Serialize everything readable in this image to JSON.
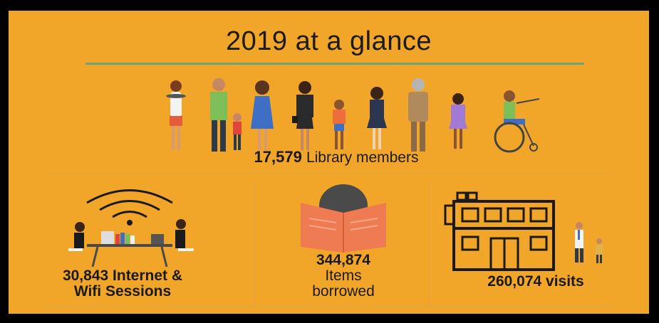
{
  "title": "2019 at a glance",
  "members": {
    "number": "17,579",
    "label": "Library members"
  },
  "internet": {
    "number": "30,843",
    "label_line1": "Internet &",
    "label_line2": "Wifi Sessions"
  },
  "borrowed": {
    "number": "344,874",
    "label_line1": "Items",
    "label_line2": "borrowed"
  },
  "visits": {
    "number": "260,074",
    "label": "visits"
  },
  "colors": {
    "background": "#f2a629",
    "frame": "#000000",
    "rule": "#6ea27a",
    "text": "#1a1a1a",
    "book": "#ef7b52"
  },
  "icons": [
    "people-group-icon",
    "wifi-icon",
    "laptop-table-icon",
    "reading-person-icon",
    "library-building-icon"
  ]
}
